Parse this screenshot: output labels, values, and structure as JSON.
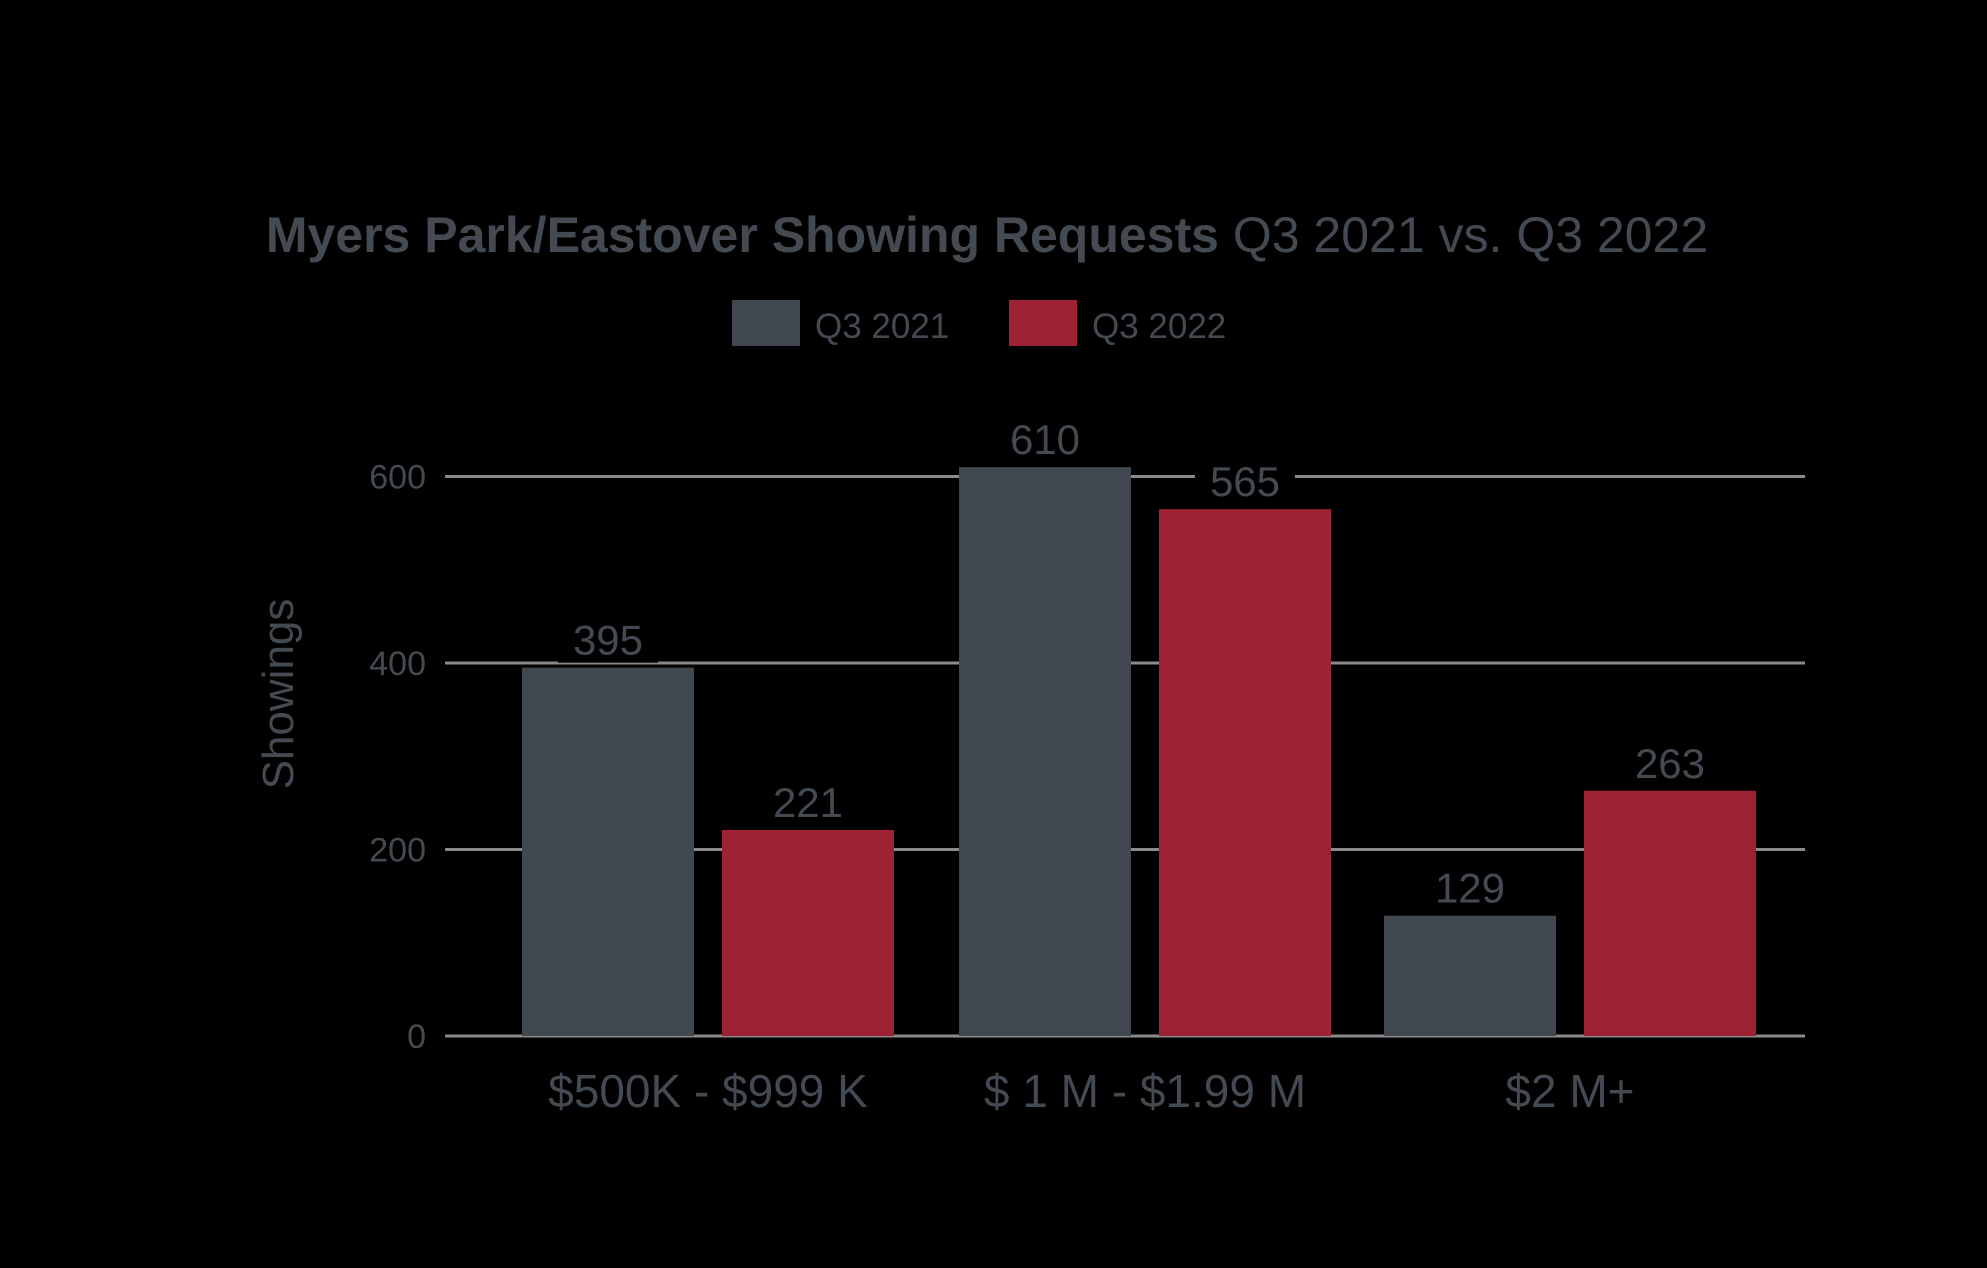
{
  "chart_data": {
    "type": "bar",
    "title_bold": "Myers Park/Eastover Showing Requests",
    "title_normal": " Q3 2021 vs. Q3 2022",
    "ylabel": "Showings",
    "xlabel": "",
    "categories": [
      "$500K - $999 K",
      "$ 1 M - $1.99 M",
      "$2 M+"
    ],
    "series": [
      {
        "name": "Q3 2021",
        "color": "#41474e",
        "values": [
          395,
          610,
          129
        ]
      },
      {
        "name": "Q3 2022",
        "color": "#9e2233",
        "values": [
          221,
          565,
          263
        ]
      }
    ],
    "ylim": [
      0,
      650
    ],
    "yticks": [
      0,
      200,
      400,
      600
    ],
    "grid": true,
    "legend_position": "top-center",
    "grid_color": "#8b8b8b"
  }
}
